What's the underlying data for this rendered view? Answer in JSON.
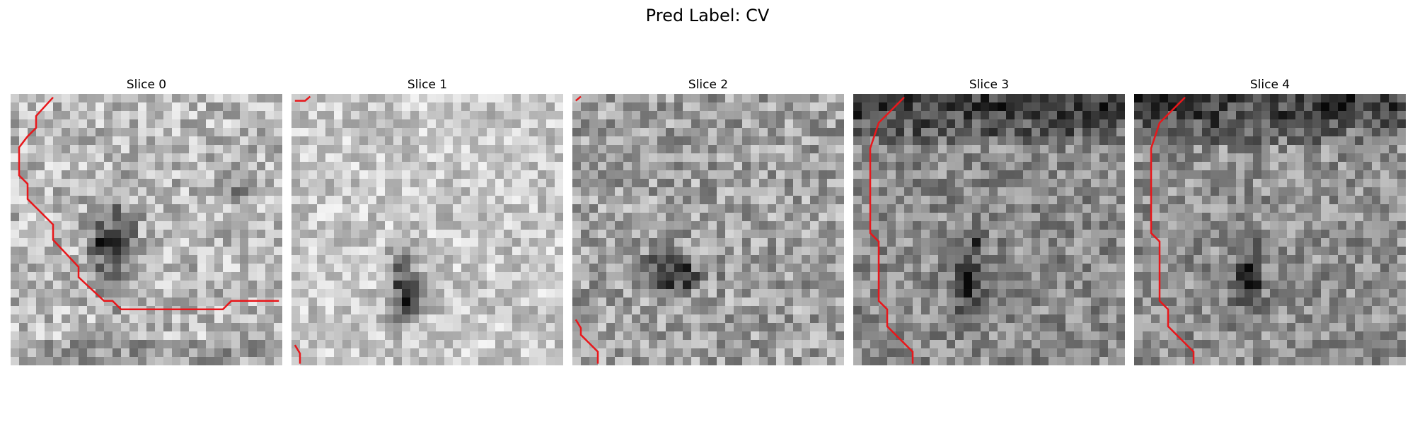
{
  "figure": {
    "title": "Pred Label: CV"
  },
  "panels": [
    {
      "title": "Slice 0"
    },
    {
      "title": "Slice 1"
    },
    {
      "title": "Slice 2"
    },
    {
      "title": "Slice 3"
    },
    {
      "title": "Slice 4"
    }
  ],
  "colors": {
    "contour": "#e8171b",
    "background": "#ffffff"
  }
}
